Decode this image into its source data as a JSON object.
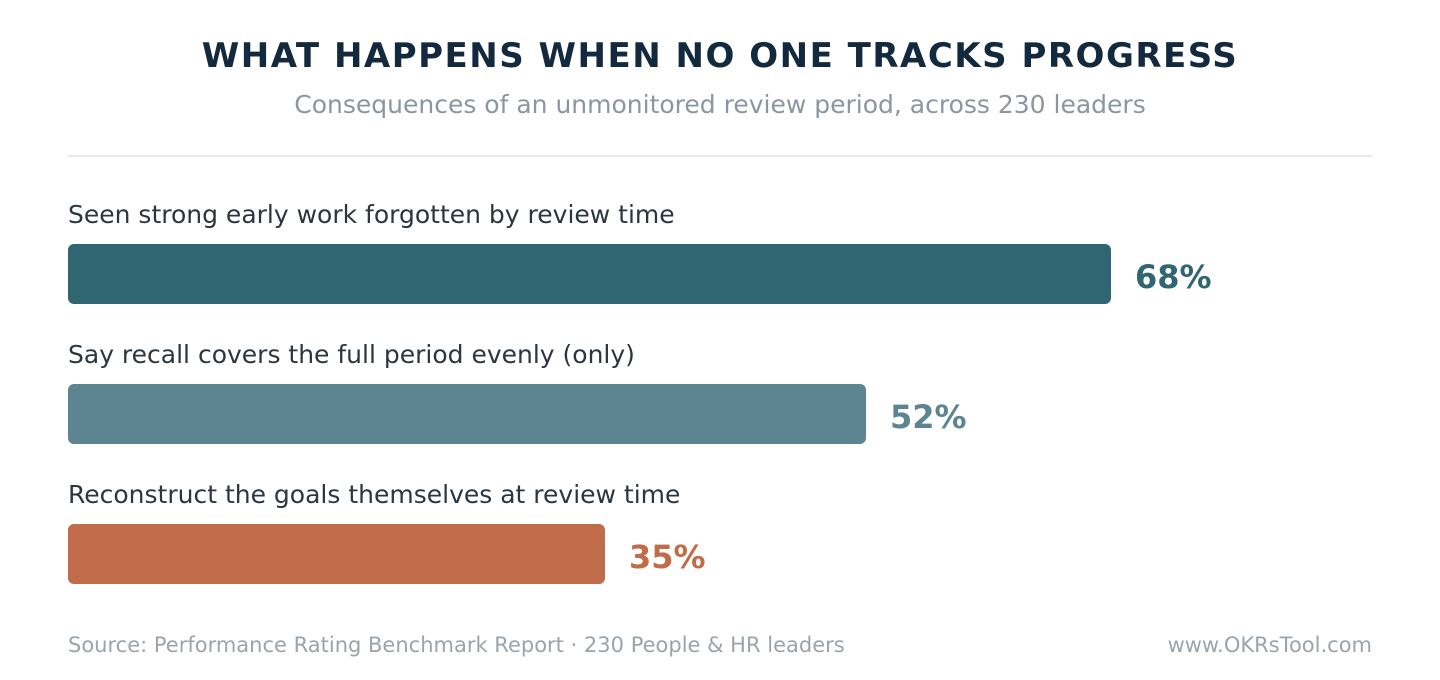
{
  "header": {
    "title": "WHAT HAPPENS WHEN NO ONE TRACKS PROGRESS",
    "subtitle": "Consequences of an unmonitored review period, across 230 leaders"
  },
  "chart_data": {
    "type": "bar",
    "orientation": "horizontal",
    "title": "WHAT HAPPENS WHEN NO ONE TRACKS PROGRESS",
    "subtitle": "Consequences of an unmonitored review period, across 230 leaders",
    "categories": [
      "Seen strong early work forgotten by review time",
      "Say recall covers the full period evenly (only)",
      "Reconstruct the goals themselves at review time"
    ],
    "values": [
      68,
      52,
      35
    ],
    "value_labels": [
      "68%",
      "52%",
      "35%"
    ],
    "unit": "%",
    "xlim": [
      0,
      85
    ],
    "colors": [
      "#306572",
      "#5c8591",
      "#c06b4a"
    ],
    "grid": false,
    "legend": "none",
    "xlabel": "",
    "ylabel": ""
  },
  "footer": {
    "source": "Source: Performance Rating Benchmark Report · 230 People & HR leaders",
    "site": "www.OKRsTool.com"
  }
}
